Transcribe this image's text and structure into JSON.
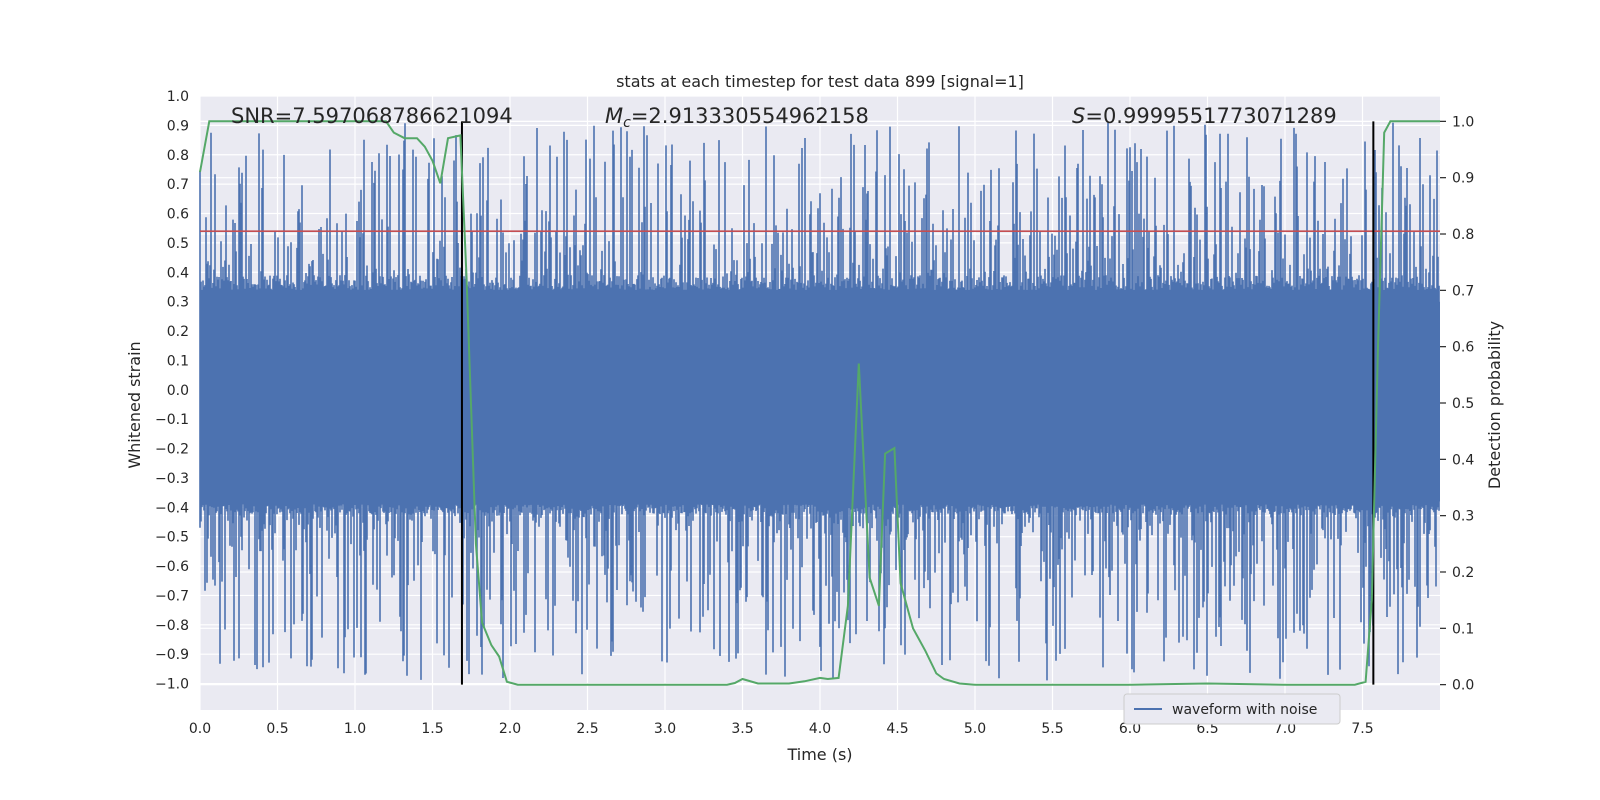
{
  "chart_data": {
    "type": "line",
    "title": "stats at each timestep for test data 899 [signal=1]",
    "xlabel": "Time (s)",
    "ylabel": "Whitened strain",
    "ylabel_right": "Detection probability",
    "xlim": [
      0.0,
      8.0
    ],
    "ylim": [
      -1.09,
      1.0
    ],
    "ylim_right": [
      -0.045,
      1.045
    ],
    "xticks": [
      "0.0",
      "0.5",
      "1.0",
      "1.5",
      "2.0",
      "2.5",
      "3.0",
      "3.5",
      "4.0",
      "4.5",
      "5.0",
      "5.5",
      "6.0",
      "6.5",
      "7.0",
      "7.5"
    ],
    "yticks": [
      "1.0",
      "0.9",
      "0.8",
      "0.7",
      "0.6",
      "0.5",
      "0.4",
      "0.3",
      "0.2",
      "0.1",
      "0.0",
      "−0.1",
      "−0.2",
      "−0.3",
      "−0.4",
      "−0.5",
      "−0.6",
      "−0.7",
      "−0.8",
      "−0.9",
      "−1.0"
    ],
    "yticks_right": [
      "1.0",
      "0.9",
      "0.8",
      "0.7",
      "0.6",
      "0.5",
      "0.4",
      "0.3",
      "0.2",
      "0.1",
      "0.0"
    ],
    "grid": true,
    "legend_position": "lower-right",
    "annotations": {
      "snr": "SNR=7.597068786621094",
      "mc_symbol": "M",
      "mc_sub": "c",
      "mc_value": "=2.913330554962158",
      "s_symbol": "S",
      "s_value": "=0.9999551773071289"
    },
    "series": [
      {
        "name": "waveform with noise",
        "color": "#4c72b0",
        "kind": "noisy-strain",
        "amplitude_core": [
          -0.42,
          0.34
        ],
        "amplitude_extreme": [
          -0.99,
          0.91
        ]
      },
      {
        "color": "#55a868",
        "axis": "right",
        "x": [
          0.0,
          0.06,
          0.2,
          0.4,
          0.6,
          0.8,
          1.0,
          1.2,
          1.25,
          1.32,
          1.4,
          1.45,
          1.5,
          1.55,
          1.6,
          1.68,
          1.72,
          1.78,
          1.82,
          1.88,
          1.93,
          1.98,
          2.05,
          2.5,
          3.0,
          3.4,
          3.45,
          3.5,
          3.6,
          3.8,
          3.9,
          4.0,
          4.05,
          4.12,
          4.18,
          4.25,
          4.32,
          4.38,
          4.42,
          4.48,
          4.52,
          4.6,
          4.68,
          4.75,
          4.8,
          4.9,
          5.0,
          5.5,
          6.0,
          6.5,
          7.0,
          7.3,
          7.45,
          7.52,
          7.56,
          7.6,
          7.64,
          7.68,
          7.72,
          7.8,
          8.0
        ],
        "y": [
          0.91,
          1.0,
          1.0,
          1.0,
          1.0,
          1.0,
          1.0,
          1.0,
          0.98,
          0.97,
          0.97,
          0.955,
          0.93,
          0.89,
          0.97,
          0.975,
          0.72,
          0.25,
          0.11,
          0.07,
          0.05,
          0.005,
          0.0,
          0.0,
          0.0,
          0.0,
          0.003,
          0.01,
          0.002,
          0.002,
          0.006,
          0.012,
          0.01,
          0.012,
          0.14,
          0.57,
          0.19,
          0.14,
          0.41,
          0.42,
          0.18,
          0.1,
          0.06,
          0.02,
          0.01,
          0.002,
          0.0,
          0.0,
          0.0,
          0.002,
          0.0,
          0.0,
          0.0,
          0.005,
          0.15,
          0.6,
          0.98,
          1.0,
          1.0,
          1.0,
          1.0
        ]
      }
    ],
    "hline": {
      "y": 0.54,
      "color": "#c44e52"
    },
    "vlines": {
      "x": [
        1.69,
        7.57
      ],
      "color": "#000000"
    }
  }
}
